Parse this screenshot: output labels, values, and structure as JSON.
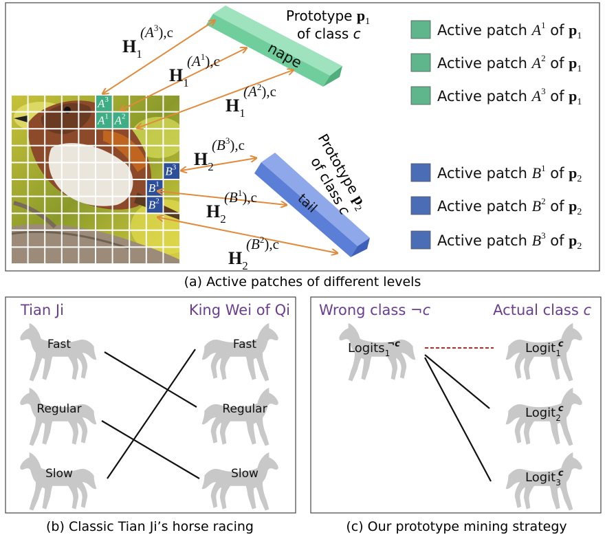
{
  "panel_a": {
    "caption": "(a) Active patches of different levels",
    "prototype1": {
      "title_prefix": "Prototype ",
      "title_symbol": "p",
      "title_subscript": "1",
      "line2": "of class ",
      "line2_italic": "c",
      "bar_label": "nape",
      "color": "#7ad3a4"
    },
    "prototype2": {
      "title_prefix": "Prototype ",
      "title_symbol": "p",
      "title_subscript": "2",
      "line2": "of class ",
      "line2_italic": "c",
      "bar_label": "tail",
      "color": "#5b7fd6"
    },
    "patch_labels": {
      "A1": {
        "base": "A",
        "sup": "1"
      },
      "A2": {
        "base": "A",
        "sup": "2"
      },
      "A3": {
        "base": "A",
        "sup": "3"
      },
      "B1": {
        "base": "B",
        "sup": "1"
      },
      "B2": {
        "base": "B",
        "sup": "2"
      },
      "B3": {
        "base": "B",
        "sup": "3"
      }
    },
    "arrows": [
      {
        "H": "H",
        "sub": "1",
        "sup_base": "(A",
        "sup_num": "3",
        "sup_tail": "),c"
      },
      {
        "H": "H",
        "sub": "1",
        "sup_base": "(A",
        "sup_num": "1",
        "sup_tail": "),c"
      },
      {
        "H": "H",
        "sub": "1",
        "sup_base": "(A",
        "sup_num": "2",
        "sup_tail": "),c"
      },
      {
        "H": "H",
        "sub": "2",
        "sup_base": "(B",
        "sup_num": "3",
        "sup_tail": "),c"
      },
      {
        "H": "H",
        "sub": "2",
        "sup_base": "(B",
        "sup_num": "1",
        "sup_tail": "),c"
      },
      {
        "H": "H",
        "sub": "2",
        "sup_base": "(B",
        "sup_num": "2",
        "sup_tail": "),c"
      }
    ],
    "legend": [
      {
        "prefix": "Active patch ",
        "base": "A",
        "sup": "1",
        "mid": " of ",
        "sym": "p",
        "sub": "1",
        "color": "#5fb58c"
      },
      {
        "prefix": "Active patch ",
        "base": "A",
        "sup": "2",
        "mid": " of ",
        "sym": "p",
        "sub": "1",
        "color": "#5fb58c"
      },
      {
        "prefix": "Active patch ",
        "base": "A",
        "sup": "3",
        "mid": " of ",
        "sym": "p",
        "sub": "1",
        "color": "#5fb58c"
      },
      {
        "prefix": "Active patch ",
        "base": "B",
        "sup": "1",
        "mid": " of ",
        "sym": "p",
        "sub": "2",
        "color": "#4a6db5"
      },
      {
        "prefix": "Active patch ",
        "base": "B",
        "sup": "2",
        "mid": " of ",
        "sym": "p",
        "sub": "2",
        "color": "#4a6db5"
      },
      {
        "prefix": "Active patch ",
        "base": "B",
        "sup": "3",
        "mid": " of ",
        "sym": "p",
        "sub": "2",
        "color": "#4a6db5"
      }
    ],
    "patch_colors": {
      "A": "#3fae86",
      "B": "#2d4f9a",
      "arrow": "#e08a3c"
    }
  },
  "panel_b": {
    "caption": "(b) Classic Tian Ji’s horse racing",
    "left_title": "Tian Ji",
    "right_title": "King Wei of Qi",
    "left_horses": [
      "Fast",
      "Regular",
      "Slow"
    ],
    "right_horses": [
      "Fast",
      "Regular",
      "Slow"
    ],
    "title_color": "#6a3d8f",
    "horse_color": "#c8c8c8"
  },
  "panel_c": {
    "caption": "(c) Our prototype mining strategy",
    "left_title_text": "Wrong class ¬",
    "left_title_italic": "c",
    "right_title_text": "Actual class ",
    "right_title_italic": "c",
    "wrong_logit": {
      "base": "Logits",
      "sub": "1",
      "sup": "¬c"
    },
    "right_logits": [
      {
        "base": "Logit",
        "sub": "1",
        "sup": "c"
      },
      {
        "base": "Logit",
        "sub": "2",
        "sup": "c"
      },
      {
        "base": "Logit",
        "sub": "3",
        "sup": "c"
      }
    ],
    "dash_color": "#cc2222"
  }
}
